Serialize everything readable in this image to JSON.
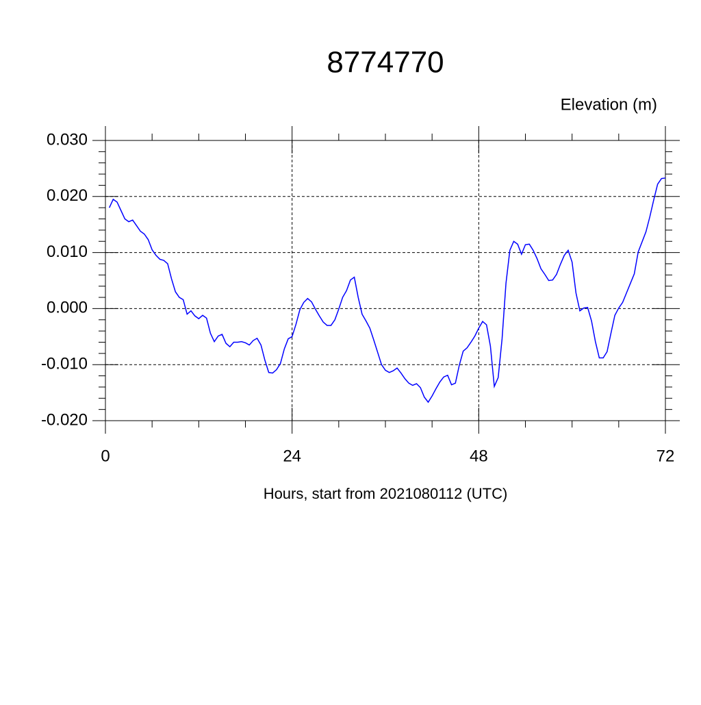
{
  "chart_data": {
    "type": "line",
    "title": "8774770",
    "ylabel": "Elevation (m)",
    "xlabel": "Hours, start from 2021080112 (UTC)",
    "xlim": [
      0,
      72
    ],
    "xticks": [
      0,
      24,
      48,
      72
    ],
    "ylim": [
      -0.02,
      0.03
    ],
    "yticks": [
      {
        "value": -0.02,
        "label": "-0.020"
      },
      {
        "value": -0.01,
        "label": "-0.010"
      },
      {
        "value": 0,
        "label": "0.000"
      },
      {
        "value": 0.01,
        "label": "0.010"
      },
      {
        "value": 0.02,
        "label": "0.020"
      },
      {
        "value": 0.03,
        "label": "0.030"
      }
    ],
    "grid": true,
    "x": [
      0.5,
      1,
      1.5,
      2,
      2.5,
      3,
      3.5,
      4,
      4.5,
      5,
      5.5,
      6,
      6.5,
      7,
      7.5,
      8,
      8.5,
      9,
      9.5,
      10,
      10.5,
      11,
      11.5,
      12,
      12.5,
      13,
      13.5,
      14,
      14.5,
      15,
      15.5,
      16,
      16.5,
      17,
      17.5,
      18,
      18.5,
      19,
      19.5,
      20,
      20.5,
      21,
      21.5,
      22,
      22.5,
      23,
      23.5,
      24,
      24.5,
      25,
      25.5,
      26,
      26.5,
      27,
      27.5,
      28,
      28.5,
      29,
      29.5,
      30,
      30.5,
      31,
      31.5,
      32,
      32.5,
      33,
      33.5,
      34,
      34.5,
      35,
      35.5,
      36,
      36.5,
      37,
      37.5,
      38,
      38.5,
      39,
      39.5,
      40,
      40.5,
      41,
      41.5,
      42,
      42.5,
      43,
      43.5,
      44,
      44.5,
      45,
      45.5,
      46,
      46.5,
      47,
      47.5,
      48,
      48.5,
      49,
      49.5,
      50,
      50.5,
      51,
      51.5,
      52,
      52.5,
      53,
      53.5,
      54,
      54.5,
      55,
      55.5,
      56,
      56.5,
      57,
      57.5,
      58,
      58.5,
      59,
      59.5,
      60,
      60.5,
      61,
      61.5,
      62,
      62.5,
      63,
      63.5,
      64,
      64.5,
      65,
      65.5,
      66,
      66.5,
      67,
      67.5,
      68,
      68.5,
      69,
      69.5,
      70,
      70.5,
      71,
      71.5,
      72
    ],
    "series": [
      {
        "color": "#0000ff",
        "values": [
          0.018,
          0.0195,
          0.019,
          0.0175,
          0.016,
          0.0155,
          0.0158,
          0.0148,
          0.0138,
          0.0133,
          0.0123,
          0.0105,
          0.0095,
          0.0088,
          0.0086,
          0.008,
          0.0053,
          0.003,
          0.002,
          0.0016,
          -0.001,
          -0.0004,
          -0.0013,
          -0.0018,
          -0.0012,
          -0.0017,
          -0.0044,
          -0.0059,
          -0.0049,
          -0.0046,
          -0.0062,
          -0.0068,
          -0.006,
          -0.006,
          -0.0059,
          -0.0061,
          -0.0065,
          -0.0057,
          -0.0053,
          -0.0065,
          -0.0092,
          -0.0114,
          -0.0115,
          -0.0109,
          -0.0098,
          -0.0072,
          -0.0054,
          -0.005,
          -0.0028,
          -0.0002,
          0.0011,
          0.0018,
          0.0012,
          -0.0001,
          -0.0013,
          -0.0024,
          -0.003,
          -0.003,
          -0.002,
          -0.0001,
          0.002,
          0.0032,
          0.0051,
          0.0056,
          0.002,
          -0.001,
          -0.0022,
          -0.0035,
          -0.0056,
          -0.0078,
          -0.01,
          -0.011,
          -0.0114,
          -0.0111,
          -0.0106,
          -0.0115,
          -0.0125,
          -0.0133,
          -0.0137,
          -0.0134,
          -0.0141,
          -0.0158,
          -0.0167,
          -0.0156,
          -0.0143,
          -0.0131,
          -0.0122,
          -0.0119,
          -0.0136,
          -0.0133,
          -0.0101,
          -0.0076,
          -0.007,
          -0.006,
          -0.0049,
          -0.0035,
          -0.0023,
          -0.0029,
          -0.0067,
          -0.0139,
          -0.0123,
          -0.0054,
          0.0045,
          0.0104,
          0.012,
          0.0115,
          0.0097,
          0.0114,
          0.0115,
          0.0104,
          0.0089,
          0.0071,
          0.0061,
          0.005,
          0.0051,
          0.0061,
          0.0079,
          0.0095,
          0.0104,
          0.0083,
          0.0028,
          -0.0004,
          0.0001,
          0.0002,
          -0.0022,
          -0.0059,
          -0.0088,
          -0.0088,
          -0.0077,
          -0.0044,
          -0.0012,
          0.0001,
          0.0011,
          0.0028,
          0.0045,
          0.0062,
          0.0101,
          0.0119,
          0.0137,
          0.0164,
          0.0194,
          0.0222,
          0.0232,
          0.0233
        ]
      }
    ]
  }
}
